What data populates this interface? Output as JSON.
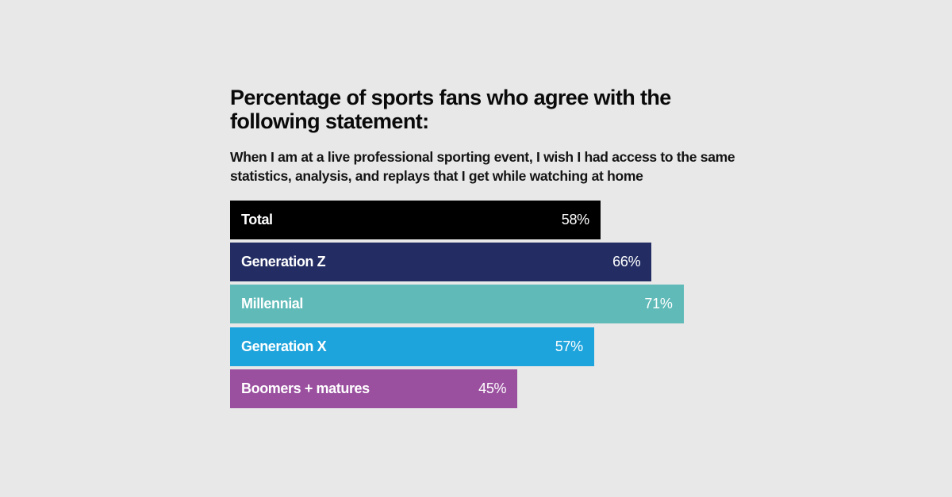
{
  "chart_data": {
    "type": "bar",
    "orientation": "horizontal",
    "title": "Percentage of sports fans who agree with the following statement:",
    "subtitle": "When I am at a live professional sporting event, I wish I had access to the same statistics, analysis, and replays that I get while watching at home",
    "categories": [
      "Total",
      "Generation Z",
      "Millennial",
      "Generation X",
      "Boomers + matures"
    ],
    "values": [
      58,
      66,
      71,
      57,
      45
    ],
    "value_labels": [
      "58%",
      "66%",
      "71%",
      "57%",
      "45%"
    ],
    "colors": [
      "#000000",
      "#232d63",
      "#5fbab8",
      "#1ea4dc",
      "#9a4f9f"
    ],
    "xlim": [
      0,
      100
    ],
    "grid": false,
    "legend": "none"
  }
}
